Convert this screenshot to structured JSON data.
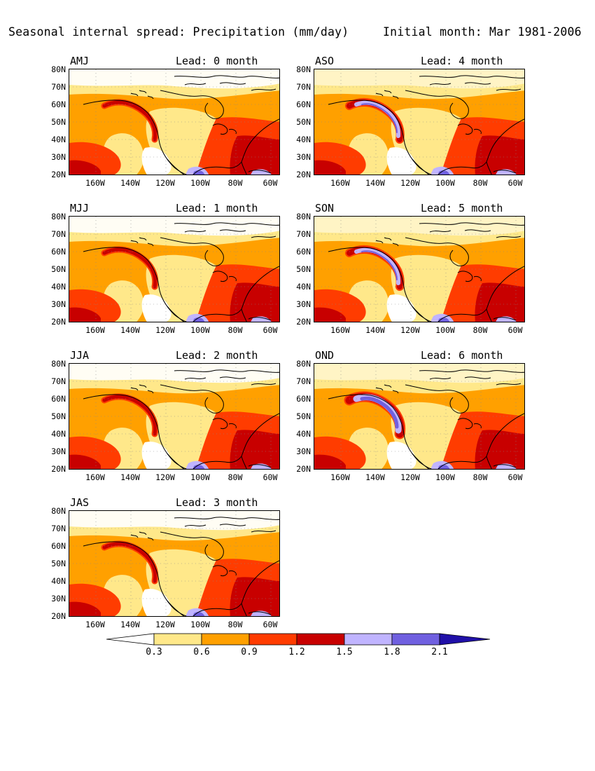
{
  "header": {
    "title": "Seasonal internal spread: Precipitation (mm/day)",
    "initial": "Initial month: Mar 1981-2006"
  },
  "panels": [
    {
      "season": "AMJ",
      "lead": "Lead: 0 month"
    },
    {
      "season": "ASO",
      "lead": "Lead: 4 month"
    },
    {
      "season": "MJJ",
      "lead": "Lead: 1 month"
    },
    {
      "season": "SON",
      "lead": "Lead: 5 month"
    },
    {
      "season": "JJA",
      "lead": "Lead: 2 month"
    },
    {
      "season": "OND",
      "lead": "Lead: 6 month"
    },
    {
      "season": "JAS",
      "lead": "Lead: 3 month"
    }
  ],
  "axes": {
    "lat_labels": [
      "80N",
      "70N",
      "60N",
      "50N",
      "40N",
      "30N",
      "20N"
    ],
    "lon_labels": [
      "160W",
      "140W",
      "120W",
      "100W",
      "80W",
      "60W"
    ],
    "lat_range": [
      20,
      80
    ],
    "lon_range": [
      -178,
      -57
    ]
  },
  "colorbar": {
    "labels": [
      "0.3",
      "0.6",
      "0.9",
      "1.2",
      "1.5",
      "1.8",
      "2.1"
    ],
    "colors": [
      "#ffffff",
      "#ffe88a",
      "#ffa000",
      "#ff3c00",
      "#c80000",
      "#c0b4ff",
      "#7060e0",
      "#2010a8"
    ]
  },
  "chart_data": {
    "type": "heatmap",
    "title": "Seasonal internal spread: Precipitation (mm/day)",
    "units": "mm/day",
    "levels": [
      0.3,
      0.6,
      0.9,
      1.2,
      1.5,
      1.8,
      2.1
    ],
    "region": {
      "lat": [
        20,
        80
      ],
      "lon": [
        -178,
        -57
      ]
    },
    "grid": "dotted",
    "colorbar_placement": "bottom"
  }
}
